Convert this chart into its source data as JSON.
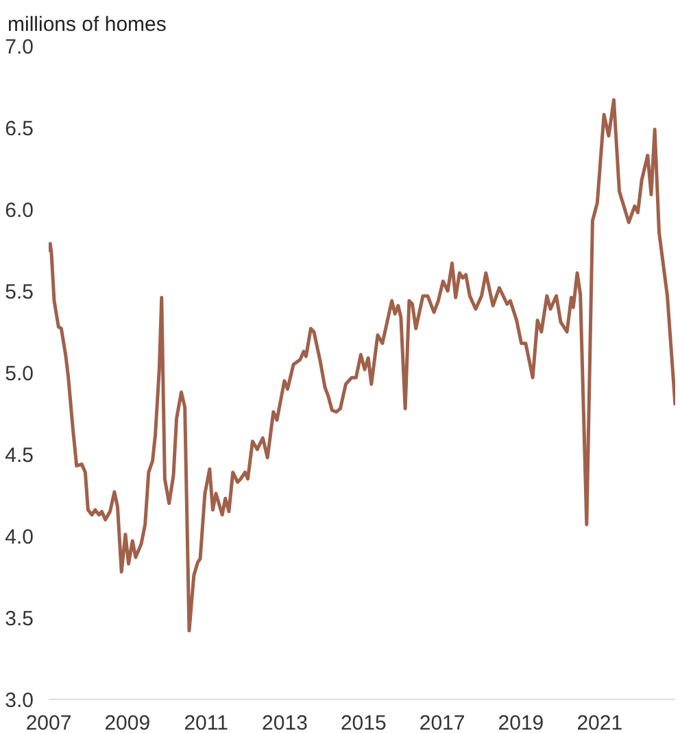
{
  "chart_data": {
    "type": "line",
    "ylabel": "millions of homes",
    "x": [
      2007.0,
      2007.04,
      2007.07,
      2007.14,
      2007.25,
      2007.32,
      2007.43,
      2007.5,
      2007.61,
      2007.71,
      2007.84,
      2007.93,
      2008.0,
      2008.1,
      2008.18,
      2008.28,
      2008.35,
      2008.44,
      2008.56,
      2008.67,
      2008.75,
      2008.85,
      2008.95,
      2009.03,
      2009.13,
      2009.21,
      2009.35,
      2009.45,
      2009.54,
      2009.64,
      2009.71,
      2009.81,
      2009.87,
      2009.95,
      2010.06,
      2010.17,
      2010.25,
      2010.37,
      2010.46,
      2010.57,
      2010.69,
      2010.79,
      2010.85,
      2010.97,
      2011.09,
      2011.17,
      2011.25,
      2011.41,
      2011.49,
      2011.58,
      2011.68,
      2011.8,
      2011.88,
      2011.99,
      2012.06,
      2012.18,
      2012.3,
      2012.44,
      2012.56,
      2012.71,
      2012.8,
      2012.99,
      2013.07,
      2013.22,
      2013.39,
      2013.48,
      2013.54,
      2013.66,
      2013.74,
      2013.9,
      2014.02,
      2014.1,
      2014.2,
      2014.31,
      2014.41,
      2014.55,
      2014.7,
      2014.81,
      2014.93,
      2015.03,
      2015.12,
      2015.2,
      2015.36,
      2015.48,
      2015.72,
      2015.8,
      2015.88,
      2015.95,
      2016.06,
      2016.16,
      2016.24,
      2016.33,
      2016.51,
      2016.63,
      2016.79,
      2016.9,
      2017.02,
      2017.14,
      2017.25,
      2017.34,
      2017.44,
      2017.52,
      2017.6,
      2017.7,
      2017.85,
      2018.0,
      2018.11,
      2018.29,
      2018.45,
      2018.65,
      2018.73,
      2018.89,
      2019.01,
      2019.12,
      2019.3,
      2019.42,
      2019.52,
      2019.66,
      2019.75,
      2019.9,
      2020.01,
      2020.17,
      2020.28,
      2020.33,
      2020.43,
      2020.51,
      2020.67,
      2020.82,
      2020.94,
      2021.11,
      2021.23,
      2021.36,
      2021.5,
      2021.74,
      2021.89,
      2021.97,
      2022.07,
      2022.22,
      2022.31,
      2022.4,
      2022.51,
      2022.72,
      2022.92
    ],
    "series": [
      {
        "color": "#a0604a",
        "values": [
          5.74,
          5.79,
          5.73,
          5.44,
          5.28,
          5.27,
          5.11,
          4.97,
          4.67,
          4.43,
          4.44,
          4.39,
          4.16,
          4.13,
          4.16,
          4.13,
          4.15,
          4.1,
          4.15,
          4.27,
          4.18,
          3.78,
          4.01,
          3.83,
          3.97,
          3.87,
          3.95,
          4.07,
          4.39,
          4.46,
          4.62,
          5.02,
          5.46,
          4.35,
          4.2,
          4.37,
          4.72,
          4.88,
          4.79,
          3.42,
          3.76,
          3.84,
          3.86,
          4.26,
          4.41,
          4.16,
          4.26,
          4.13,
          4.23,
          4.15,
          4.39,
          4.33,
          4.35,
          4.39,
          4.35,
          4.58,
          4.53,
          4.6,
          4.48,
          4.76,
          4.71,
          4.95,
          4.9,
          5.05,
          5.08,
          5.13,
          5.1,
          5.27,
          5.25,
          5.07,
          4.91,
          4.86,
          4.77,
          4.76,
          4.78,
          4.93,
          4.97,
          4.97,
          5.11,
          5.02,
          5.09,
          4.93,
          5.23,
          5.18,
          5.44,
          5.36,
          5.41,
          5.34,
          4.78,
          5.44,
          5.42,
          5.27,
          5.47,
          5.47,
          5.37,
          5.44,
          5.56,
          5.5,
          5.67,
          5.46,
          5.61,
          5.58,
          5.6,
          5.47,
          5.39,
          5.47,
          5.61,
          5.41,
          5.52,
          5.42,
          5.44,
          5.32,
          5.18,
          5.18,
          4.97,
          5.32,
          5.25,
          5.47,
          5.39,
          5.47,
          5.31,
          5.25,
          5.46,
          5.4,
          5.61,
          5.48,
          4.07,
          5.93,
          6.04,
          6.58,
          6.45,
          6.67,
          6.11,
          5.92,
          6.02,
          5.98,
          6.18,
          6.33,
          6.09,
          6.49,
          5.86,
          5.47,
          4.8
        ]
      }
    ],
    "xlim": [
      2007,
      2022.92
    ],
    "xticks": [
      2007,
      2009,
      2011,
      2013,
      2015,
      2017,
      2019,
      2021
    ],
    "ylim": [
      3,
      7
    ],
    "yticks": [
      {
        "value": 3,
        "label": "3.0"
      },
      {
        "value": 3.5,
        "label": "3.5"
      },
      {
        "value": 4,
        "label": "4.0"
      },
      {
        "value": 4.5,
        "label": "4.5"
      },
      {
        "value": 5,
        "label": "5.0"
      },
      {
        "value": 5.5,
        "label": "5.5"
      },
      {
        "value": 6,
        "label": "6.0"
      },
      {
        "value": 6.5,
        "label": "6.5"
      },
      {
        "value": 7,
        "label": "7.0"
      }
    ],
    "grid": false,
    "marker": "none",
    "line_style": "solid"
  }
}
